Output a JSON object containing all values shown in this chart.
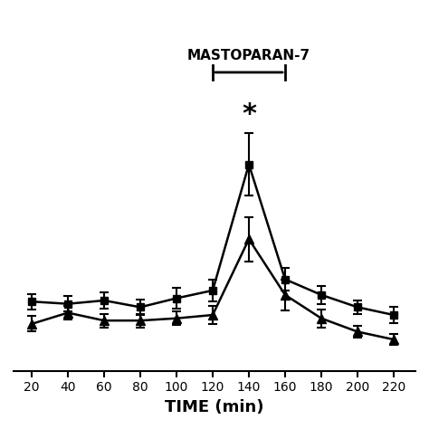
{
  "xlabel": "TIME (min)",
  "time_points": [
    20,
    40,
    60,
    80,
    100,
    120,
    140,
    160,
    180,
    200,
    220
  ],
  "square_series": {
    "y": [
      0.62,
      0.6,
      0.63,
      0.57,
      0.65,
      0.72,
      1.85,
      0.82,
      0.68,
      0.57,
      0.5
    ],
    "yerr": [
      0.07,
      0.07,
      0.07,
      0.07,
      0.09,
      0.1,
      0.28,
      0.1,
      0.08,
      0.06,
      0.07
    ]
  },
  "triangle_series": {
    "y": [
      0.42,
      0.52,
      0.45,
      0.45,
      0.47,
      0.5,
      1.18,
      0.68,
      0.47,
      0.35,
      0.28
    ],
    "yerr": [
      0.07,
      0.06,
      0.06,
      0.06,
      0.06,
      0.08,
      0.2,
      0.14,
      0.08,
      0.05,
      0.05
    ]
  },
  "mastoparan_bar_x_start": 120,
  "mastoparan_bar_x_end": 160,
  "ylim": [
    0.0,
    2.5
  ],
  "xlim": [
    10,
    232
  ],
  "xticks": [
    20,
    40,
    60,
    80,
    100,
    120,
    140,
    160,
    180,
    200,
    220
  ],
  "background_color": "#ffffff",
  "line_color": "#000000"
}
